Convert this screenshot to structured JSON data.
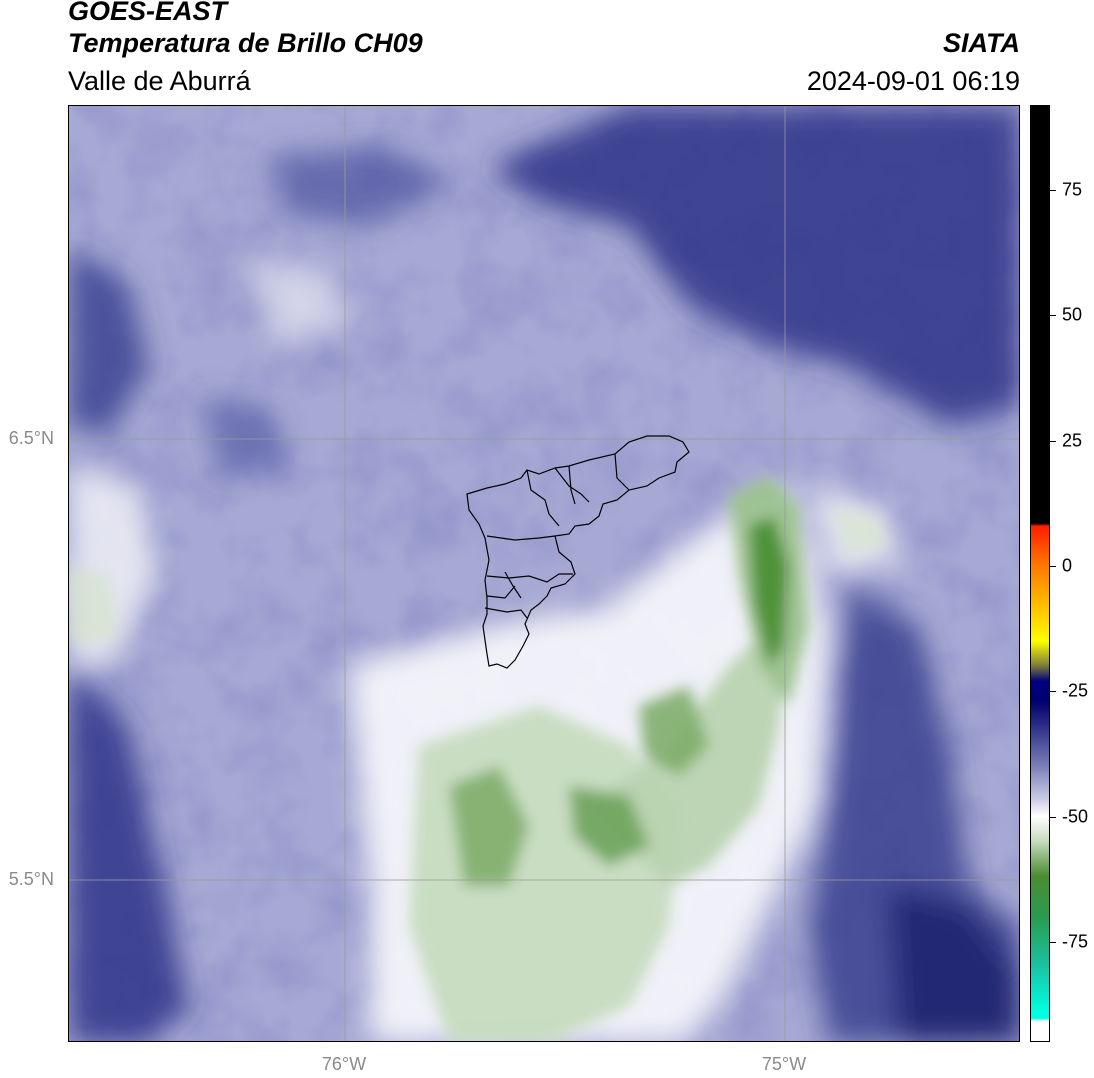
{
  "header": {
    "title_line1": "GOES-EAST",
    "title_line2": "Temperatura de Brillo CH09",
    "subtitle": "Valle de Aburrá",
    "organization": "SIATA",
    "datetime": "2024-09-01 06:19"
  },
  "map": {
    "lat_labels": [
      "6.5°N",
      "5.5°N"
    ],
    "lon_labels": [
      "76°W",
      "75°W"
    ],
    "grid": true,
    "boundary_outline": "Valle de Aburrá municipalities",
    "colors": {
      "cold_dark_blue": "#2b2f86",
      "mid_blue": "#6f75b7",
      "light_lavender": "#b8bbdc",
      "near_white": "#f1f1f7",
      "light_green": "#c9dcc2",
      "mid_green": "#7fad6c",
      "dark_green": "#3f8a2c"
    }
  },
  "colorbar": {
    "ticks": [
      "75",
      "50",
      "25",
      "0",
      "-25",
      "-50",
      "-75"
    ],
    "tick_values": [
      75,
      50,
      25,
      0,
      -25,
      -50,
      -75
    ],
    "range": [
      -95,
      92
    ],
    "stops": [
      {
        "v": 92,
        "color": "#000000"
      },
      {
        "v": 8.5,
        "color": "#000000"
      },
      {
        "v": 8,
        "color": "#ff1e00"
      },
      {
        "v": 0,
        "color": "#ff7a00"
      },
      {
        "v": -10,
        "color": "#ffd000"
      },
      {
        "v": -15,
        "color": "#ffff00"
      },
      {
        "v": -20,
        "color": "#7a7a3a"
      },
      {
        "v": -23,
        "color": "#000080"
      },
      {
        "v": -27,
        "color": "#000070"
      },
      {
        "v": -32,
        "color": "#2b2f86"
      },
      {
        "v": -40,
        "color": "#7a7eb9"
      },
      {
        "v": -47,
        "color": "#cfd0e6"
      },
      {
        "v": -50,
        "color": "#ffffff"
      },
      {
        "v": -55,
        "color": "#c6dbbf"
      },
      {
        "v": -62,
        "color": "#4a8c32"
      },
      {
        "v": -70,
        "color": "#2b9a4e"
      },
      {
        "v": -80,
        "color": "#19c3a3"
      },
      {
        "v": -89,
        "color": "#00ffe0"
      },
      {
        "v": -90.5,
        "color": "#00ffe0"
      },
      {
        "v": -91,
        "color": "#ffffff"
      },
      {
        "v": -95,
        "color": "#ffffff"
      }
    ]
  }
}
